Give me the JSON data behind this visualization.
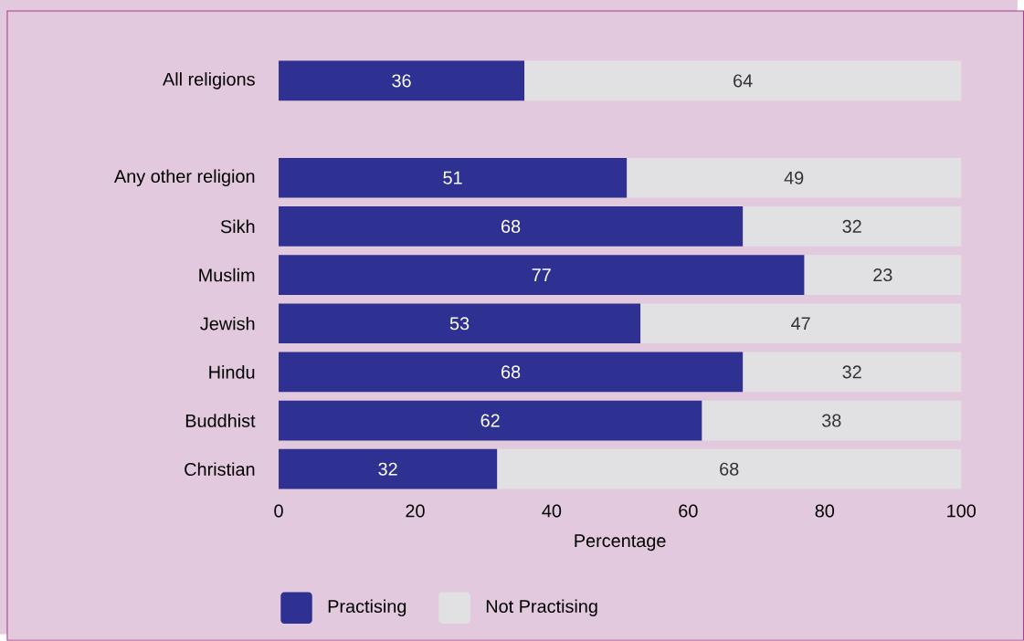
{
  "chart_data": {
    "type": "bar",
    "orientation": "horizontal",
    "stacked": true,
    "xlabel": "Percentage",
    "categories": [
      "All religions",
      null,
      "Any other religion",
      "Sikh",
      "Muslim",
      "Jewish",
      "Hindu",
      "Buddhist",
      "Christian"
    ],
    "series": [
      {
        "name": "Practising",
        "color": "#2e3192",
        "values": [
          36,
          null,
          51,
          68,
          77,
          53,
          68,
          62,
          32
        ]
      },
      {
        "name": "Not Practising",
        "color": "#e1e1e3",
        "values": [
          64,
          null,
          49,
          32,
          23,
          47,
          32,
          38,
          68
        ]
      }
    ],
    "xlim": [
      0,
      100
    ],
    "xticks": [
      0,
      20,
      40,
      60,
      80,
      100
    ],
    "grid": false,
    "legend": "bottom",
    "data_labels": true
  }
}
